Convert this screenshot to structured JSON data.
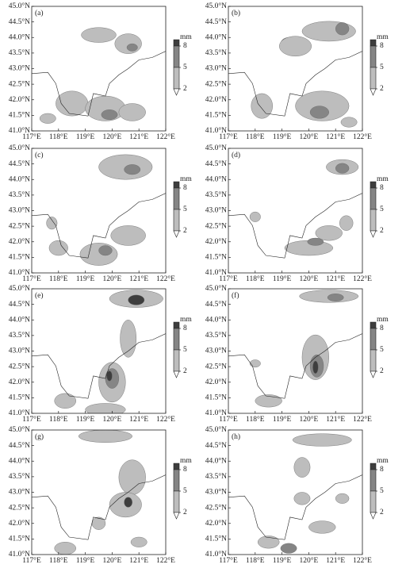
{
  "panels": [
    {
      "label": "(a)"
    },
    {
      "label": "(b)"
    },
    {
      "label": "(c)"
    },
    {
      "label": "(d)"
    },
    {
      "label": "(e)"
    },
    {
      "label": "(f)"
    },
    {
      "label": "(g)"
    },
    {
      "label": "(h)"
    }
  ],
  "xlim": [
    117,
    122
  ],
  "xticks": [
    {
      "value": 117,
      "label": "117°E"
    },
    {
      "value": 118,
      "label": "118°E"
    },
    {
      "value": 119,
      "label": "119°E"
    },
    {
      "value": 120,
      "label": "120°E"
    },
    {
      "value": 121,
      "label": "121°E"
    },
    {
      "value": 122,
      "label": "122°E"
    }
  ],
  "ylim": [
    41,
    45
  ],
  "yticks": [
    {
      "value": 41,
      "label": "41.0°N"
    },
    {
      "value": 41.5,
      "label": "41.5°N"
    },
    {
      "value": 42,
      "label": "42.0°N"
    },
    {
      "value": 42.5,
      "label": "42.5°N"
    },
    {
      "value": 43,
      "label": "43.0°N"
    },
    {
      "value": 43.5,
      "label": "43.5°N"
    },
    {
      "value": 44,
      "label": "44.0°N"
    },
    {
      "value": 44.5,
      "label": "44.5°N"
    },
    {
      "value": 45,
      "label": "45.0°N"
    }
  ],
  "colorbar": {
    "unit": "mm",
    "ticks": [
      2,
      5,
      8
    ]
  }
}
